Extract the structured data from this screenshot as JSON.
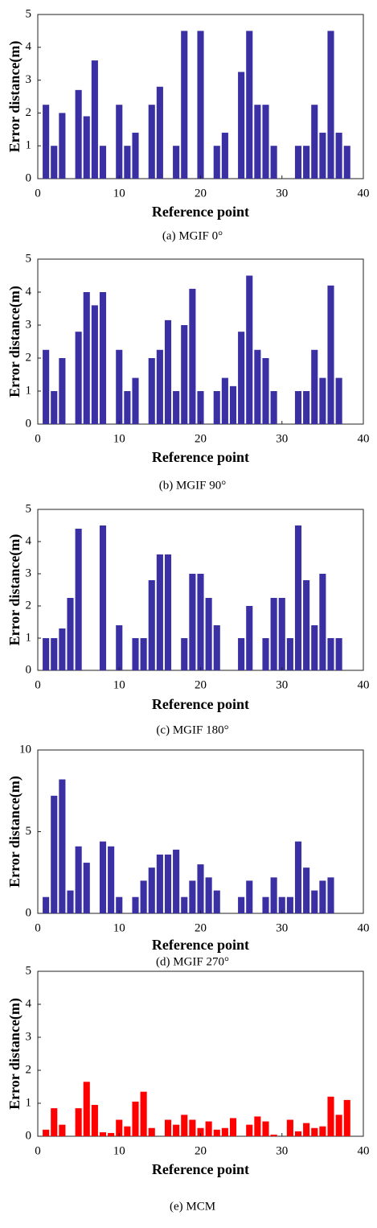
{
  "chart_data": [
    {
      "type": "bar",
      "caption": "(a)  MGIF  0°",
      "xlabel": "Reference point",
      "ylabel": "Error distance(m)",
      "color": "#3a2fa3",
      "x": [
        1,
        2,
        3,
        5,
        6,
        7,
        8,
        10,
        11,
        12,
        14,
        15,
        17,
        18,
        20,
        22,
        23,
        25,
        26,
        27,
        28,
        29,
        32,
        33,
        34,
        35,
        36,
        37,
        38
      ],
      "values": [
        2.25,
        1,
        2,
        2.7,
        1.9,
        3.6,
        1,
        2.25,
        1,
        1.4,
        2.25,
        2.8,
        1,
        4.5,
        4.5,
        1,
        1.4,
        3.25,
        4.5,
        2.25,
        2.25,
        1,
        1,
        1,
        2.25,
        1.4,
        4.5,
        1.4,
        1
      ],
      "xlim": [
        0,
        40
      ],
      "xticks": [
        0,
        10,
        20,
        30,
        40
      ],
      "ylim": [
        0,
        5
      ],
      "yticks": [
        0,
        1,
        2,
        3,
        4,
        5
      ],
      "grid": false
    },
    {
      "type": "bar",
      "caption": "(b)  MGIF  90°",
      "xlabel": "Reference point",
      "ylabel": "Error distance(m)",
      "color": "#3a2fa3",
      "x": [
        1,
        2,
        3,
        5,
        6,
        7,
        8,
        10,
        11,
        12,
        14,
        15,
        16,
        17,
        18,
        19,
        20,
        22,
        23,
        24,
        25,
        26,
        27,
        28,
        29,
        32,
        33,
        34,
        35,
        36,
        37
      ],
      "values": [
        2.25,
        1,
        2,
        2.8,
        4,
        3.6,
        4,
        2.25,
        1,
        1.4,
        2,
        2.25,
        3.15,
        1,
        3,
        4.1,
        1,
        1,
        1.4,
        1.15,
        2.8,
        4.5,
        2.25,
        2,
        1,
        1,
        1,
        2.25,
        1.4,
        4.2,
        1.4
      ],
      "xlim": [
        0,
        40
      ],
      "xticks": [
        0,
        10,
        20,
        30,
        40
      ],
      "ylim": [
        0,
        5
      ],
      "yticks": [
        0,
        1,
        2,
        3,
        4,
        5
      ],
      "grid": false
    },
    {
      "type": "bar",
      "caption": "(c)  MGIF  180°",
      "xlabel": "Reference point",
      "ylabel": "Error distance(m)",
      "color": "#3a2fa3",
      "x": [
        1,
        2,
        3,
        4,
        5,
        8,
        10,
        12,
        13,
        14,
        15,
        16,
        18,
        19,
        20,
        21,
        22,
        25,
        26,
        28,
        29,
        30,
        31,
        32,
        33,
        34,
        35,
        36,
        37
      ],
      "values": [
        1,
        1,
        1.3,
        2.25,
        4.4,
        4.5,
        1.4,
        1,
        1,
        2.8,
        3.6,
        3.6,
        1,
        3,
        3,
        2.25,
        1.4,
        1,
        2,
        1,
        2.25,
        2.25,
        1,
        4.5,
        2.8,
        1.4,
        3,
        1,
        1
      ],
      "xlim": [
        0,
        40
      ],
      "xticks": [
        0,
        10,
        20,
        30,
        40
      ],
      "ylim": [
        0,
        5
      ],
      "yticks": [
        0,
        1,
        2,
        3,
        4,
        5
      ],
      "grid": false
    },
    {
      "type": "bar",
      "caption": "(d)  MGIF  270°",
      "xlabel": "Reference point",
      "ylabel": "Error distance(m)",
      "color": "#3a2fa3",
      "x": [
        1,
        2,
        3,
        4,
        5,
        6,
        8,
        9,
        10,
        12,
        13,
        14,
        15,
        16,
        17,
        18,
        19,
        20,
        21,
        22,
        25,
        26,
        28,
        29,
        30,
        31,
        32,
        33,
        34,
        35,
        36
      ],
      "values": [
        1,
        7.2,
        8.2,
        1.4,
        4.1,
        3.1,
        4.4,
        4.1,
        1,
        1,
        2,
        2.8,
        3.6,
        3.6,
        3.9,
        1,
        2,
        3,
        2.2,
        1.4,
        1,
        2,
        1,
        2.2,
        1,
        1,
        4.4,
        2.8,
        1.4,
        2,
        2.2
      ],
      "xlim": [
        0,
        40
      ],
      "xticks": [
        0,
        10,
        20,
        30,
        40
      ],
      "ylim": [
        0,
        10
      ],
      "yticks": [
        0,
        5,
        10
      ],
      "grid": false
    },
    {
      "type": "bar",
      "caption": "(e)  MCM",
      "xlabel": "Reference point",
      "ylabel": "Error distance(m)",
      "color": "#ff0000",
      "x": [
        1,
        2,
        3,
        5,
        6,
        7,
        8,
        9,
        10,
        11,
        12,
        13,
        14,
        16,
        17,
        18,
        19,
        20,
        21,
        22,
        23,
        24,
        26,
        27,
        28,
        29,
        31,
        32,
        33,
        34,
        35,
        36,
        37,
        38
      ],
      "values": [
        0.2,
        0.85,
        0.35,
        0.85,
        1.65,
        0.95,
        0.12,
        0.1,
        0.5,
        0.3,
        1.05,
        1.35,
        0.25,
        0.5,
        0.35,
        0.65,
        0.5,
        0.25,
        0.45,
        0.2,
        0.25,
        0.55,
        0.35,
        0.6,
        0.45,
        0.05,
        0.5,
        0.15,
        0.4,
        0.25,
        0.3,
        1.2,
        0.65,
        1.1
      ],
      "xlim": [
        0,
        40
      ],
      "xticks": [
        0,
        10,
        20,
        30,
        40
      ],
      "ylim": [
        0,
        5
      ],
      "yticks": [
        0,
        1,
        2,
        3,
        4,
        5
      ],
      "grid": false
    }
  ]
}
